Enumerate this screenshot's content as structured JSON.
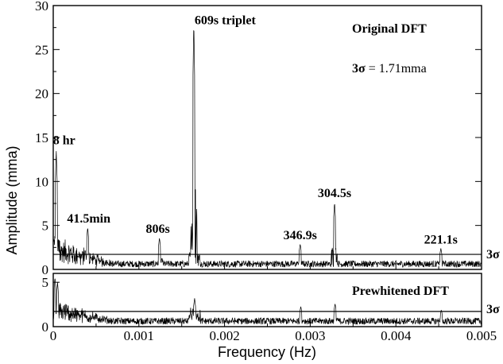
{
  "chart_data": [
    {
      "type": "line",
      "panel": "top",
      "title": "Original DFT",
      "annotation_prefix": "3σ",
      "annotation_value": " = 1.71mma",
      "xlabel": "Frequency (Hz)",
      "ylabel": "Amplitude (mma)",
      "xlim": [
        0,
        0.005
      ],
      "ylim": [
        0,
        30
      ],
      "y_ticks": [
        0,
        5,
        10,
        15,
        20,
        25,
        30
      ],
      "x_ticks": [
        0,
        0.001,
        0.002,
        0.003,
        0.004,
        0.005
      ],
      "x_tick_labels": [
        "0",
        "0.001",
        "0.002",
        "0.003",
        "0.004",
        "0.005"
      ],
      "threshold": 1.71,
      "threshold_label": "3σ",
      "peaks": [
        {
          "x": 3.5e-05,
          "y": 13.7,
          "label": "8 hr"
        },
        {
          "x": 0.000402,
          "y": 4.8,
          "label": "41.5min"
        },
        {
          "x": 0.00124,
          "y": 3.6,
          "label": "806s"
        },
        {
          "x": 0.001641,
          "y": 28.4,
          "label": "609s triplet"
        },
        {
          "x": 0.002883,
          "y": 2.9,
          "label": "346.9s"
        },
        {
          "x": 0.003284,
          "y": 7.7,
          "label": "304.5s"
        },
        {
          "x": 0.004525,
          "y": 2.4,
          "label": "221.1s"
        }
      ]
    },
    {
      "type": "line",
      "panel": "bottom",
      "title": "Prewhitened DFT",
      "xlim": [
        0,
        0.005
      ],
      "ylim": [
        0,
        6
      ],
      "y_ticks": [
        0,
        5
      ],
      "threshold": 1.71,
      "threshold_label": "3σ",
      "peaks": [
        {
          "x": 2e-05,
          "y": 5.6
        },
        {
          "x": 5e-05,
          "y": 5.0
        },
        {
          "x": 0.00165,
          "y": 3.2
        },
        {
          "x": 0.00289,
          "y": 2.3
        },
        {
          "x": 0.00329,
          "y": 2.6
        },
        {
          "x": 0.00453,
          "y": 1.9
        }
      ]
    }
  ]
}
